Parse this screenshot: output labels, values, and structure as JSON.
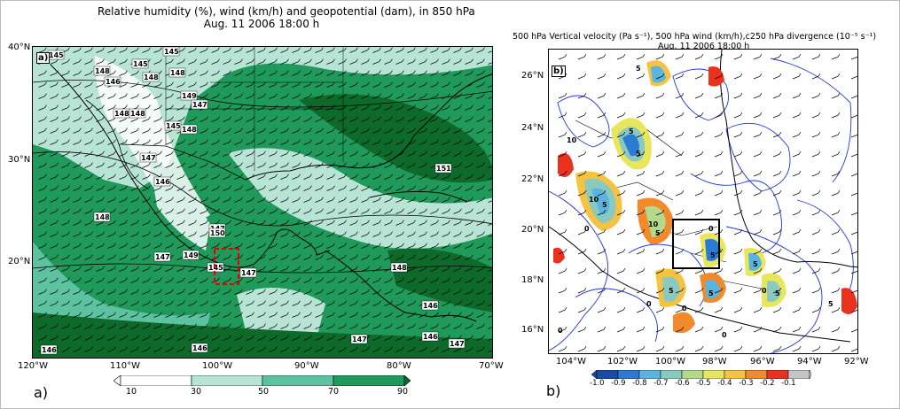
{
  "panel_a": {
    "title_line1": "Relative humidity (%), wind (km/h) and geopotential (dam), in 850 hPa",
    "title_line2": "Aug. 11 2006 18:00 h",
    "tag": "a)",
    "letter": "a)",
    "lat_ticks": [
      "40°N",
      "30°N",
      "20°N"
    ],
    "lon_ticks": [
      "120°W",
      "110°W",
      "100°W",
      "90°W",
      "80°W",
      "70°W"
    ],
    "colorbar_ticks": [
      "10",
      "30",
      "50",
      "70",
      "90"
    ],
    "contour_labels": [
      "145",
      "145",
      "145",
      "148",
      "146",
      "148",
      "148",
      "149",
      "148",
      "148",
      "147",
      "145",
      "148",
      "147",
      "146",
      "148",
      "147",
      "147",
      "149",
      "145",
      "147",
      "151",
      "150",
      "148",
      "146",
      "146",
      "147",
      "146",
      "147",
      "146"
    ],
    "colors": {
      "c10": "#ffffff",
      "c30": "#b8e4d6",
      "c50": "#5cc2a0",
      "c70": "#1f9a5a",
      "c90": "#0d6a2a",
      "box": "#e00000"
    }
  },
  "panel_b": {
    "title_main": "500 hPa   Vertical velocity      (Pa s⁻¹), 500 hPa   wind   (km/h),c250 hPa  divergence   (10⁻⁵ s⁻¹)",
    "title_sub": "Aug. 11 2006 18:00 h",
    "tag": "b)",
    "letter": "b)",
    "lat_ticks": [
      "26°N",
      "24°N",
      "22°N",
      "20°N",
      "18°N",
      "16°N"
    ],
    "lon_ticks": [
      "104°W",
      "102°W",
      "100°W",
      "98°W",
      "96°W",
      "94°W",
      "92°W"
    ],
    "colorbar_ticks": [
      "-1.0",
      "-0.9",
      "-0.8",
      "-0.7",
      "-0.6",
      "-0.5",
      "-0.4",
      "-0.3",
      "-0.2",
      "-0.1"
    ],
    "contour_labels": [
      "5",
      "10",
      "5",
      "5",
      "10",
      "5",
      "0",
      "10",
      "5",
      "0",
      "5",
      "5",
      "0",
      "5",
      "0",
      "0",
      "5",
      "0",
      "5",
      "5",
      "0"
    ],
    "colors": [
      "#1a4aa8",
      "#2b7bd4",
      "#5ab4e0",
      "#8ac9c0",
      "#b5d98a",
      "#e8e65a",
      "#f5c242",
      "#f08a2a",
      "#e8321e",
      "#c4c4c4"
    ]
  }
}
